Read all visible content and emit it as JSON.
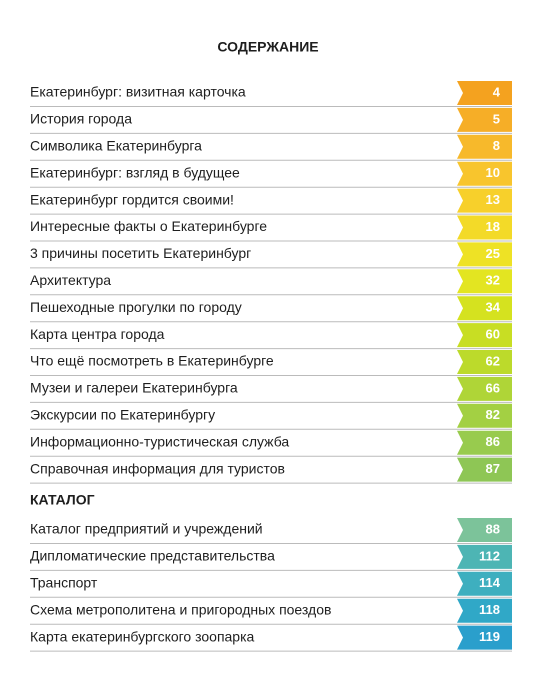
{
  "title": "СОДЕРЖАНИЕ",
  "contents": [
    {
      "label": "Екатеринбург: визитная карточка",
      "page": 4,
      "color": "#f4a21f"
    },
    {
      "label": "История города",
      "page": 5,
      "color": "#f6ae27"
    },
    {
      "label": "Символика Екатеринбурга",
      "page": 8,
      "color": "#f7b92b"
    },
    {
      "label": "Екатеринбург: взгляд в будущее",
      "page": 10,
      "color": "#f8c52d"
    },
    {
      "label": "Екатеринбург гордится своими!",
      "page": 13,
      "color": "#f7d02b"
    },
    {
      "label": "Интересные факты о Екатеринбурге",
      "page": 18,
      "color": "#f3da28"
    },
    {
      "label": "3 причины посетить Екатеринбург",
      "page": 25,
      "color": "#eee225"
    },
    {
      "label": "Архитектура",
      "page": 32,
      "color": "#e3e521"
    },
    {
      "label": "Пешеходные прогулки по городу",
      "page": 34,
      "color": "#d5e21f"
    },
    {
      "label": "Карта центра города",
      "page": 60,
      "color": "#c8de23"
    },
    {
      "label": "Что ещё посмотреть в Екатеринбурге",
      "page": 62,
      "color": "#bcda2b"
    },
    {
      "label": "Музеи и галереи Екатеринбурга",
      "page": 66,
      "color": "#afd537"
    },
    {
      "label": "Экскурсии по Екатеринбургу",
      "page": 82,
      "color": "#a3d043"
    },
    {
      "label": "Информационно-туристическая служба",
      "page": 86,
      "color": "#98cb4e"
    },
    {
      "label": "Справочная информация для туристов",
      "page": 87,
      "color": "#8ec655"
    }
  ],
  "catalog": {
    "title": "КАТАЛОГ",
    "items": [
      {
        "label": "Каталог предприятий и учреждений",
        "page": 88,
        "color": "#7cc39a"
      },
      {
        "label": "Дипломатические представительства",
        "page": 112,
        "color": "#4db5b4"
      },
      {
        "label": "Транспорт",
        "page": 114,
        "color": "#3eafbf"
      },
      {
        "label": "Схема метрополитена и пригородных поездов",
        "page": 118,
        "color": "#30a8c7"
      },
      {
        "label": "Карта екатеринбургского зоопарка",
        "page": 119,
        "color": "#2a9fcc"
      }
    ]
  }
}
